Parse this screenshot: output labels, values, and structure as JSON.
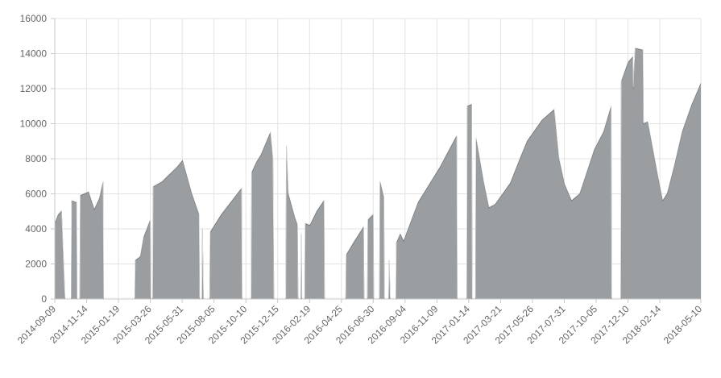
{
  "colors": {
    "area_fill": "#9b9ea0",
    "area_stroke": "#6e7174",
    "highlight": "#ececec",
    "grid": "#e3e3e3",
    "axis": "#c8c8c8",
    "tick_text": "#666666"
  },
  "chart_data": {
    "type": "area",
    "title": "",
    "xlabel": "",
    "ylabel": "",
    "grid": true,
    "legend": "none",
    "ylim": [
      0,
      16000
    ],
    "xlim": [
      "2014-09-09",
      "2018-05-10"
    ],
    "y_ticks": [
      "0",
      "2000",
      "4000",
      "6000",
      "8000",
      "10000",
      "12000",
      "14000",
      "16000"
    ],
    "x_ticks": [
      "2014-09-09",
      "2014-11-14",
      "2015-01-19",
      "2015-03-26",
      "2015-05-31",
      "2015-08-05",
      "2015-10-10",
      "2015-12-15",
      "2016-02-19",
      "2016-04-25",
      "2016-06-30",
      "2016-09-04",
      "2016-11-09",
      "2017-01-14",
      "2017-03-21",
      "2017-05-26",
      "2017-07-31",
      "2017-10-05",
      "2017-12-10",
      "2018-02-14",
      "2018-05-10"
    ],
    "series": [
      {
        "values": [
          [
            "2014-09-09",
            4300
          ],
          [
            "2014-09-16",
            4800
          ],
          [
            "2014-09-23",
            5000
          ],
          [
            "2014-09-30",
            0
          ],
          [
            "2014-10-13",
            0
          ],
          [
            "2014-10-14",
            5600
          ],
          [
            "2014-10-24",
            5500
          ],
          [
            "2014-10-25",
            0
          ],
          [
            "2014-10-31",
            0
          ],
          [
            "2014-11-01",
            5900
          ],
          [
            "2014-11-18",
            6100
          ],
          [
            "2014-11-30",
            5100
          ],
          [
            "2014-12-10",
            5700
          ],
          [
            "2014-12-18",
            6700
          ],
          [
            "2014-12-19",
            0
          ],
          [
            "2015-02-22",
            0
          ],
          [
            "2015-02-23",
            2200
          ],
          [
            "2015-03-05",
            2400
          ],
          [
            "2015-03-12",
            3500
          ],
          [
            "2015-03-26",
            4500
          ],
          [
            "2015-03-27",
            0
          ],
          [
            "2015-03-31",
            0
          ],
          [
            "2015-04-01",
            6400
          ],
          [
            "2015-04-20",
            6700
          ],
          [
            "2015-05-01",
            7000
          ],
          [
            "2015-05-20",
            7500
          ],
          [
            "2015-06-01",
            7900
          ],
          [
            "2015-06-10",
            7000
          ],
          [
            "2015-06-20",
            6000
          ],
          [
            "2015-07-05",
            4800
          ],
          [
            "2015-07-06",
            0
          ],
          [
            "2015-07-11",
            0
          ],
          [
            "2015-07-12",
            4000
          ],
          [
            "2015-07-14",
            0
          ],
          [
            "2015-07-27",
            0
          ],
          [
            "2015-07-28",
            3800
          ],
          [
            "2015-08-20",
            4800
          ],
          [
            "2015-10-01",
            6300
          ],
          [
            "2015-10-02",
            0
          ],
          [
            "2015-10-21",
            0
          ],
          [
            "2015-10-22",
            7200
          ],
          [
            "2015-11-01",
            7800
          ],
          [
            "2015-11-10",
            8200
          ],
          [
            "2015-11-30",
            9500
          ],
          [
            "2015-12-05",
            8000
          ],
          [
            "2015-12-07",
            0
          ],
          [
            "2016-01-01",
            0
          ],
          [
            "2016-01-02",
            8700
          ],
          [
            "2016-01-06",
            6000
          ],
          [
            "2016-01-20",
            4600
          ],
          [
            "2016-01-25",
            4200
          ],
          [
            "2016-01-26",
            0
          ],
          [
            "2016-02-01",
            0
          ],
          [
            "2016-02-02",
            3700
          ],
          [
            "2016-02-03",
            0
          ],
          [
            "2016-02-09",
            0
          ],
          [
            "2016-02-10",
            4300
          ],
          [
            "2016-02-20",
            4200
          ],
          [
            "2016-03-05",
            5000
          ],
          [
            "2016-03-20",
            5600
          ],
          [
            "2016-03-21",
            0
          ],
          [
            "2016-05-04",
            0
          ],
          [
            "2016-05-05",
            2500
          ],
          [
            "2016-05-20",
            3200
          ],
          [
            "2016-06-10",
            4100
          ],
          [
            "2016-06-11",
            0
          ],
          [
            "2016-06-18",
            0
          ],
          [
            "2016-06-19",
            4500
          ],
          [
            "2016-06-30",
            4800
          ],
          [
            "2016-07-01",
            0
          ],
          [
            "2016-07-13",
            0
          ],
          [
            "2016-07-14",
            6700
          ],
          [
            "2016-07-22",
            5800
          ],
          [
            "2016-07-23",
            0
          ],
          [
            "2016-08-01",
            0
          ],
          [
            "2016-08-02",
            2200
          ],
          [
            "2016-08-04",
            0
          ],
          [
            "2016-08-16",
            0
          ],
          [
            "2016-08-17",
            3200
          ],
          [
            "2016-08-25",
            3700
          ],
          [
            "2016-09-01",
            3300
          ],
          [
            "2016-10-01",
            5500
          ],
          [
            "2016-11-15",
            7500
          ],
          [
            "2016-12-20",
            9300
          ],
          [
            "2016-12-21",
            0
          ],
          [
            "2017-01-10",
            0
          ],
          [
            "2017-01-11",
            11000
          ],
          [
            "2017-01-20",
            11100
          ],
          [
            "2017-01-21",
            0
          ],
          [
            "2017-01-28",
            0
          ],
          [
            "2017-01-29",
            9200
          ],
          [
            "2017-02-15",
            6500
          ],
          [
            "2017-02-25",
            5200
          ],
          [
            "2017-03-10",
            5400
          ],
          [
            "2017-04-10",
            6600
          ],
          [
            "2017-04-30",
            8000
          ],
          [
            "2017-05-15",
            9000
          ],
          [
            "2017-06-15",
            10200
          ],
          [
            "2017-07-10",
            10800
          ],
          [
            "2017-07-20",
            8000
          ],
          [
            "2017-08-01",
            6500
          ],
          [
            "2017-08-15",
            5600
          ],
          [
            "2017-09-01",
            6000
          ],
          [
            "2017-10-01",
            8500
          ],
          [
            "2017-10-20",
            9500
          ],
          [
            "2017-11-05",
            11000
          ],
          [
            "2017-11-06",
            0
          ],
          [
            "2017-11-25",
            0
          ],
          [
            "2017-11-26",
            12400
          ],
          [
            "2017-12-10",
            13500
          ],
          [
            "2017-12-20",
            13800
          ],
          [
            "2017-12-21",
            12000
          ],
          [
            "2017-12-25",
            14300
          ],
          [
            "2018-01-10",
            14200
          ],
          [
            "2018-01-11",
            10000
          ],
          [
            "2018-01-20",
            10100
          ],
          [
            "2018-02-10",
            7000
          ],
          [
            "2018-02-20",
            5600
          ],
          [
            "2018-03-01",
            6000
          ],
          [
            "2018-03-15",
            7500
          ],
          [
            "2018-04-01",
            9500
          ],
          [
            "2018-04-20",
            11000
          ],
          [
            "2018-05-10",
            12300
          ]
        ]
      }
    ]
  }
}
